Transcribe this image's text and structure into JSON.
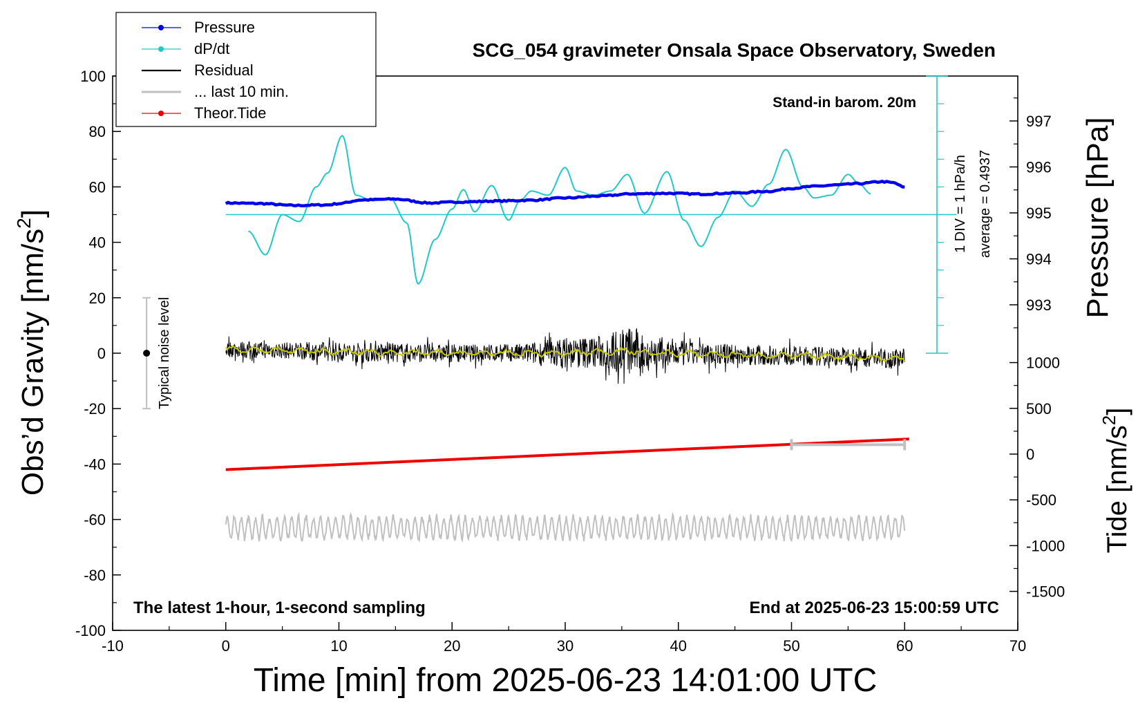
{
  "chart_data": {
    "type": "line",
    "title": "SCG_054 gravimeter Onsala Space Observatory, Sweden",
    "xlabel": "Time [min] from 2025-06-23 14:01:00 UTC",
    "ylabel_left": "Obs'd Gravity [nm/s²]",
    "ylabel_left_text": "Obs’d Gravity [nm/s",
    "ylabel_left_sup": "2",
    "ylabel_left_close": "]",
    "ylabel_pressure": "Pressure [hPa]",
    "ylabel_tide": "Tide [nm/s²]",
    "ylabel_tide_text": "Tide [nm/s",
    "ylabel_tide_sup": "2",
    "ylabel_tide_close": "]",
    "xlim": [
      -10,
      70
    ],
    "ylim": [
      -100,
      100
    ],
    "x_ticks": [
      "-10",
      "0",
      "10",
      "20",
      "30",
      "40",
      "50",
      "60",
      "70"
    ],
    "y_ticks": [
      "100",
      "80",
      "60",
      "40",
      "20",
      "0",
      "-20",
      "-40",
      "-60",
      "-80",
      "-100"
    ],
    "pressure_ticks": [
      "997",
      "996",
      "995",
      "994",
      "993"
    ],
    "pressure_range": [
      992,
      998
    ],
    "tide_ticks": [
      "1000",
      "500",
      "0",
      "-500",
      "-1000",
      "-1500"
    ],
    "tide_range": [
      -1500,
      1000
    ],
    "legend": [
      {
        "label": "Pressure",
        "color": "#0000ee",
        "marker": true
      },
      {
        "label": "dP/dt",
        "color": "#20c8c8",
        "marker": true
      },
      {
        "label": "Residual",
        "color": "#000000",
        "marker": false
      },
      {
        "label": "... last 10 min.",
        "color": "#c0c0c0",
        "marker": false
      },
      {
        "label": "Theor.Tide",
        "color": "#ee0000",
        "marker": true
      }
    ],
    "annotations": {
      "barometer": "Stand-in barom. 20m",
      "div_label": "1 DIV = 1 hPa/h",
      "average_label": "average = 0.4937",
      "noise_label": "Typical noise level",
      "footer_left": "The latest 1-hour, 1-second sampling",
      "footer_right": "End at 2025-06-23 15:00:59 UTC"
    },
    "noise_bar": {
      "x": -7,
      "center": 0,
      "range": [
        -20,
        20
      ]
    },
    "window_bar": {
      "x_range": [
        50,
        60
      ],
      "y": -33
    },
    "dpdt_baseline": 50,
    "series": [
      {
        "name": "Pressure",
        "unit": "gravity-axis",
        "color": "#0000ee",
        "x": [
          0,
          3,
          6,
          9,
          10,
          12,
          15,
          18,
          21,
          24,
          27,
          30,
          33,
          36,
          39,
          42,
          45,
          48,
          50,
          52,
          54,
          56,
          58,
          59,
          60
        ],
        "values": [
          54.2,
          54.0,
          53.3,
          53.5,
          54.0,
          55.3,
          55.6,
          54.2,
          54.6,
          54.9,
          55.2,
          56.0,
          56.7,
          57.5,
          57.7,
          57.4,
          57.8,
          58.4,
          59.5,
          60.2,
          60.7,
          61.2,
          61.9,
          61.5,
          59.8
        ]
      },
      {
        "name": "dP/dt",
        "unit": "gravity-axis",
        "color": "#20c8c8",
        "x": [
          2,
          3.5,
          5,
          6.5,
          8,
          9,
          10.3,
          11.5,
          13,
          14.5,
          16,
          17,
          18.5,
          20,
          21,
          22,
          23.5,
          25,
          26,
          27,
          28.5,
          30,
          31,
          32.5,
          34,
          35.5,
          37,
          39,
          40.5,
          42,
          43.5,
          45,
          46.5,
          48,
          49.5,
          51,
          52,
          53.5,
          55,
          56,
          57
        ],
        "values": [
          44,
          35.5,
          50,
          47.5,
          60,
          65,
          78.5,
          57,
          55,
          56,
          47,
          25,
          41,
          52,
          59,
          51,
          60.5,
          48,
          55,
          58.5,
          57,
          67,
          58.5,
          57,
          58.5,
          64.5,
          50.5,
          65.5,
          48,
          38.5,
          49,
          58.5,
          53,
          61,
          73.5,
          60,
          56,
          57,
          64.5,
          61,
          57.5
        ]
      },
      {
        "name": "Residual",
        "unit": "gravity-axis",
        "color": "#000000",
        "x": [
          0,
          5,
          10,
          15,
          20,
          25,
          30,
          33,
          35.5,
          38,
          42,
          48,
          54,
          60
        ],
        "values": [
          1.5,
          1.0,
          0.5,
          0.2,
          0.0,
          0.0,
          0.0,
          0.5,
          0.8,
          0.0,
          -0.3,
          -0.8,
          -1.2,
          -2.0
        ],
        "amplitude": [
          3,
          3,
          3.5,
          3.5,
          3.2,
          3.2,
          5.5,
          6,
          9,
          6,
          4,
          3.5,
          3.5,
          3.5
        ],
        "min": -11,
        "max": 12
      },
      {
        "name": "... last 10 min.",
        "unit": "gravity-axis",
        "color": "#c0c0c0",
        "x_range": [
          0,
          60
        ],
        "center": -63,
        "min": -69,
        "max": -56
      },
      {
        "name": "Theor.Tide",
        "unit": "tide-axis",
        "color": "#ee0000",
        "x": [
          0,
          60.4
        ],
        "values": [
          -170,
          165
        ]
      }
    ]
  }
}
